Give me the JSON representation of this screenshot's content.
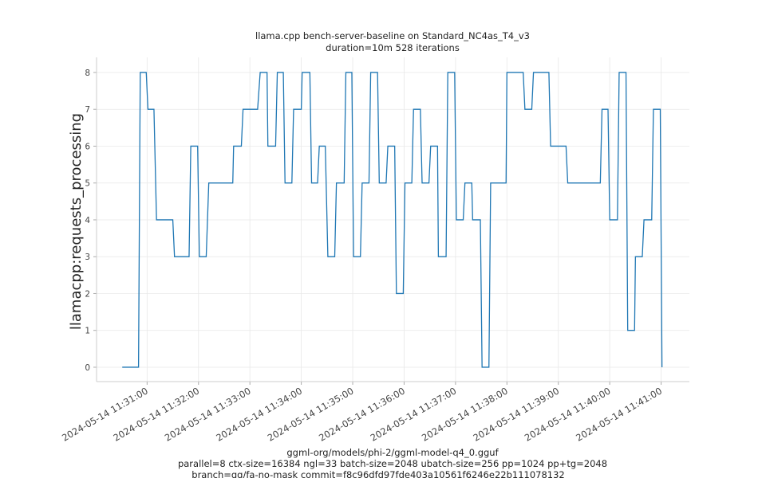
{
  "chart_data": {
    "type": "line",
    "title": "llama.cpp bench-server-baseline on Standard_NC4as_T4_v3",
    "subtitle": "duration=10m 528 iterations",
    "y_label": "llamacpp:requests_processing",
    "x_label_lines": [
      "ggml-org/models/phi-2/ggml-model-q4_0.gguf",
      "parallel=8 ctx-size=16384 ngl=33 batch-size=2048 ubatch-size=256 pp=1024 pp+tg=2048",
      "branch=gg/fa-no-mask commit=f8c96dfd97fde403a10561f6246e22b111078132"
    ],
    "x": [
      "2024-05-14 11:30:31",
      "2024-05-14 11:30:50",
      "2024-05-14 11:30:52",
      "2024-05-14 11:30:59",
      "2024-05-14 11:31:01",
      "2024-05-14 11:31:08",
      "2024-05-14 11:31:11",
      "2024-05-14 11:31:30",
      "2024-05-14 11:31:32",
      "2024-05-14 11:31:49",
      "2024-05-14 11:31:51",
      "2024-05-14 11:31:59",
      "2024-05-14 11:32:01",
      "2024-05-14 11:32:09",
      "2024-05-14 11:32:12",
      "2024-05-14 11:32:40",
      "2024-05-14 11:32:41",
      "2024-05-14 11:32:50",
      "2024-05-14 11:32:52",
      "2024-05-14 11:33:09",
      "2024-05-14 11:33:12",
      "2024-05-14 11:33:20",
      "2024-05-14 11:33:21",
      "2024-05-14 11:33:30",
      "2024-05-14 11:33:32",
      "2024-05-14 11:33:39",
      "2024-05-14 11:33:41",
      "2024-05-14 11:33:49",
      "2024-05-14 11:33:51",
      "2024-05-14 11:34:00",
      "2024-05-14 11:34:01",
      "2024-05-14 11:34:10",
      "2024-05-14 11:34:12",
      "2024-05-14 11:34:19",
      "2024-05-14 11:34:21",
      "2024-05-14 11:34:28",
      "2024-05-14 11:34:31",
      "2024-05-14 11:34:39",
      "2024-05-14 11:34:41",
      "2024-05-14 11:34:50",
      "2024-05-14 11:34:52",
      "2024-05-14 11:34:59",
      "2024-05-14 11:35:01",
      "2024-05-14 11:35:09",
      "2024-05-14 11:35:11",
      "2024-05-14 11:35:19",
      "2024-05-14 11:35:21",
      "2024-05-14 11:35:29",
      "2024-05-14 11:35:31",
      "2024-05-14 11:35:39",
      "2024-05-14 11:35:41",
      "2024-05-14 11:35:49",
      "2024-05-14 11:35:51",
      "2024-05-14 11:35:59",
      "2024-05-14 11:36:01",
      "2024-05-14 11:36:09",
      "2024-05-14 11:36:11",
      "2024-05-14 11:36:19",
      "2024-05-14 11:36:21",
      "2024-05-14 11:36:29",
      "2024-05-14 11:36:31",
      "2024-05-14 11:36:39",
      "2024-05-14 11:36:40",
      "2024-05-14 11:36:49",
      "2024-05-14 11:36:51",
      "2024-05-14 11:36:59",
      "2024-05-14 11:37:01",
      "2024-05-14 11:37:09",
      "2024-05-14 11:37:11",
      "2024-05-14 11:37:19",
      "2024-05-14 11:37:20",
      "2024-05-14 11:37:29",
      "2024-05-14 11:37:31",
      "2024-05-14 11:37:39",
      "2024-05-14 11:37:41",
      "2024-05-14 11:37:59",
      "2024-05-14 11:38:00",
      "2024-05-14 11:38:19",
      "2024-05-14 11:38:21",
      "2024-05-14 11:38:29",
      "2024-05-14 11:38:31",
      "2024-05-14 11:38:49",
      "2024-05-14 11:38:51",
      "2024-05-14 11:39:09",
      "2024-05-14 11:39:11",
      "2024-05-14 11:39:49",
      "2024-05-14 11:39:51",
      "2024-05-14 11:39:58",
      "2024-05-14 11:40:00",
      "2024-05-14 11:40:09",
      "2024-05-14 11:40:11",
      "2024-05-14 11:40:19",
      "2024-05-14 11:40:21",
      "2024-05-14 11:40:29",
      "2024-05-14 11:40:30",
      "2024-05-14 11:40:38",
      "2024-05-14 11:40:40",
      "2024-05-14 11:40:49",
      "2024-05-14 11:40:51",
      "2024-05-14 11:40:59",
      "2024-05-14 11:41:01"
    ],
    "series": [
      {
        "name": "llamacpp:requests_processing",
        "color": "#1f77b4",
        "values": [
          0,
          0,
          8,
          8,
          7,
          7,
          4,
          4,
          3,
          3,
          6,
          6,
          3,
          3,
          5,
          5,
          6,
          6,
          7,
          7,
          8,
          8,
          6,
          6,
          8,
          8,
          5,
          5,
          7,
          7,
          8,
          8,
          5,
          5,
          6,
          6,
          3,
          3,
          5,
          5,
          8,
          8,
          3,
          3,
          5,
          5,
          8,
          8,
          5,
          5,
          6,
          6,
          2,
          2,
          5,
          5,
          7,
          7,
          5,
          5,
          6,
          6,
          3,
          3,
          8,
          8,
          4,
          4,
          5,
          5,
          4,
          4,
          0,
          0,
          5,
          5,
          8,
          8,
          7,
          7,
          8,
          8,
          6,
          6,
          5,
          5,
          7,
          7,
          4,
          4,
          8,
          8,
          1,
          1,
          3,
          3,
          4,
          4,
          7,
          7,
          0
        ]
      }
    ],
    "xlim": [
      "2024-05-14 11:30:01",
      "2024-05-14 11:41:33"
    ],
    "xticks": [
      "2024-05-14 11:31:00",
      "2024-05-14 11:32:00",
      "2024-05-14 11:33:00",
      "2024-05-14 11:34:00",
      "2024-05-14 11:35:00",
      "2024-05-14 11:36:00",
      "2024-05-14 11:37:00",
      "2024-05-14 11:38:00",
      "2024-05-14 11:39:00",
      "2024-05-14 11:40:00",
      "2024-05-14 11:41:00"
    ],
    "ylim": [
      -0.39,
      8.41
    ],
    "yticks": [
      0,
      1,
      2,
      3,
      4,
      5,
      6,
      7,
      8
    ],
    "grid": true
  }
}
